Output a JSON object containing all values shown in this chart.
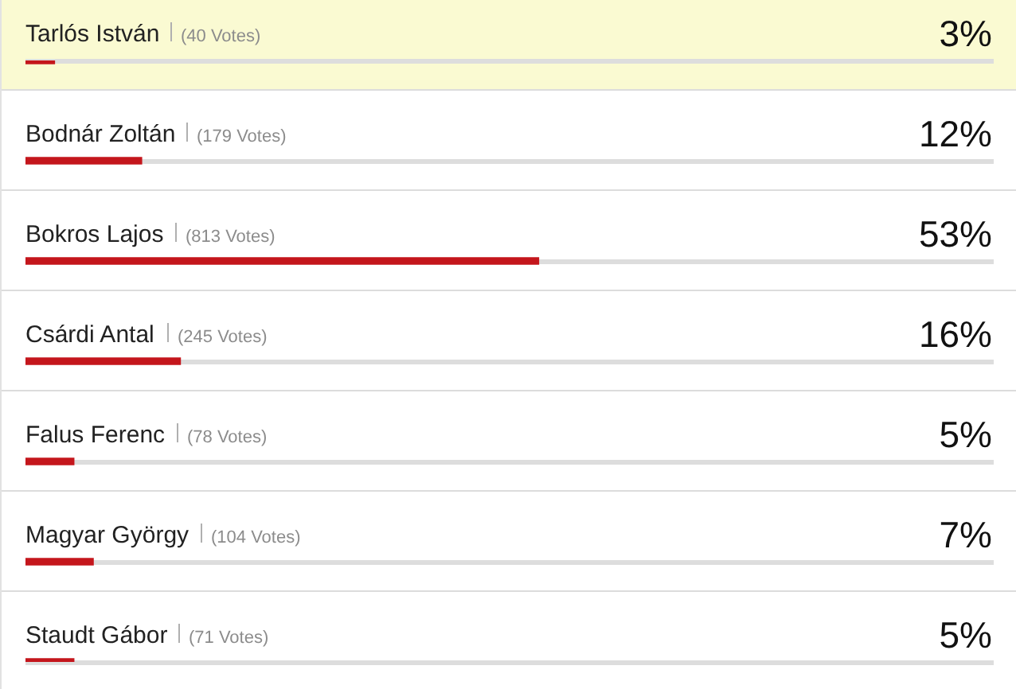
{
  "chart_data": {
    "type": "bar",
    "orientation": "horizontal",
    "categories": [
      "Tarlós István",
      "Bodnár Zoltán",
      "Bokros Lajos",
      "Csárdi Antal",
      "Falus Ferenc",
      "Magyar György",
      "Staudt Gábor"
    ],
    "values": [
      3,
      12,
      53,
      16,
      5,
      7,
      5
    ],
    "value_labels": [
      "3%",
      "12%",
      "53%",
      "16%",
      "5%",
      "7%",
      "5%"
    ],
    "color": "#c4161c",
    "xlim": [
      0,
      100
    ],
    "annotations": [
      "(40 Votes)",
      "(179 Votes)",
      "(813 Votes)",
      "(245 Votes)",
      "(78 Votes)",
      "(104 Votes)",
      "(71 Votes)"
    ],
    "bands": [
      {
        "axis": "y",
        "from": "Tarlós István",
        "to": "Tarlós István",
        "color": "#fafad2"
      }
    ]
  }
}
